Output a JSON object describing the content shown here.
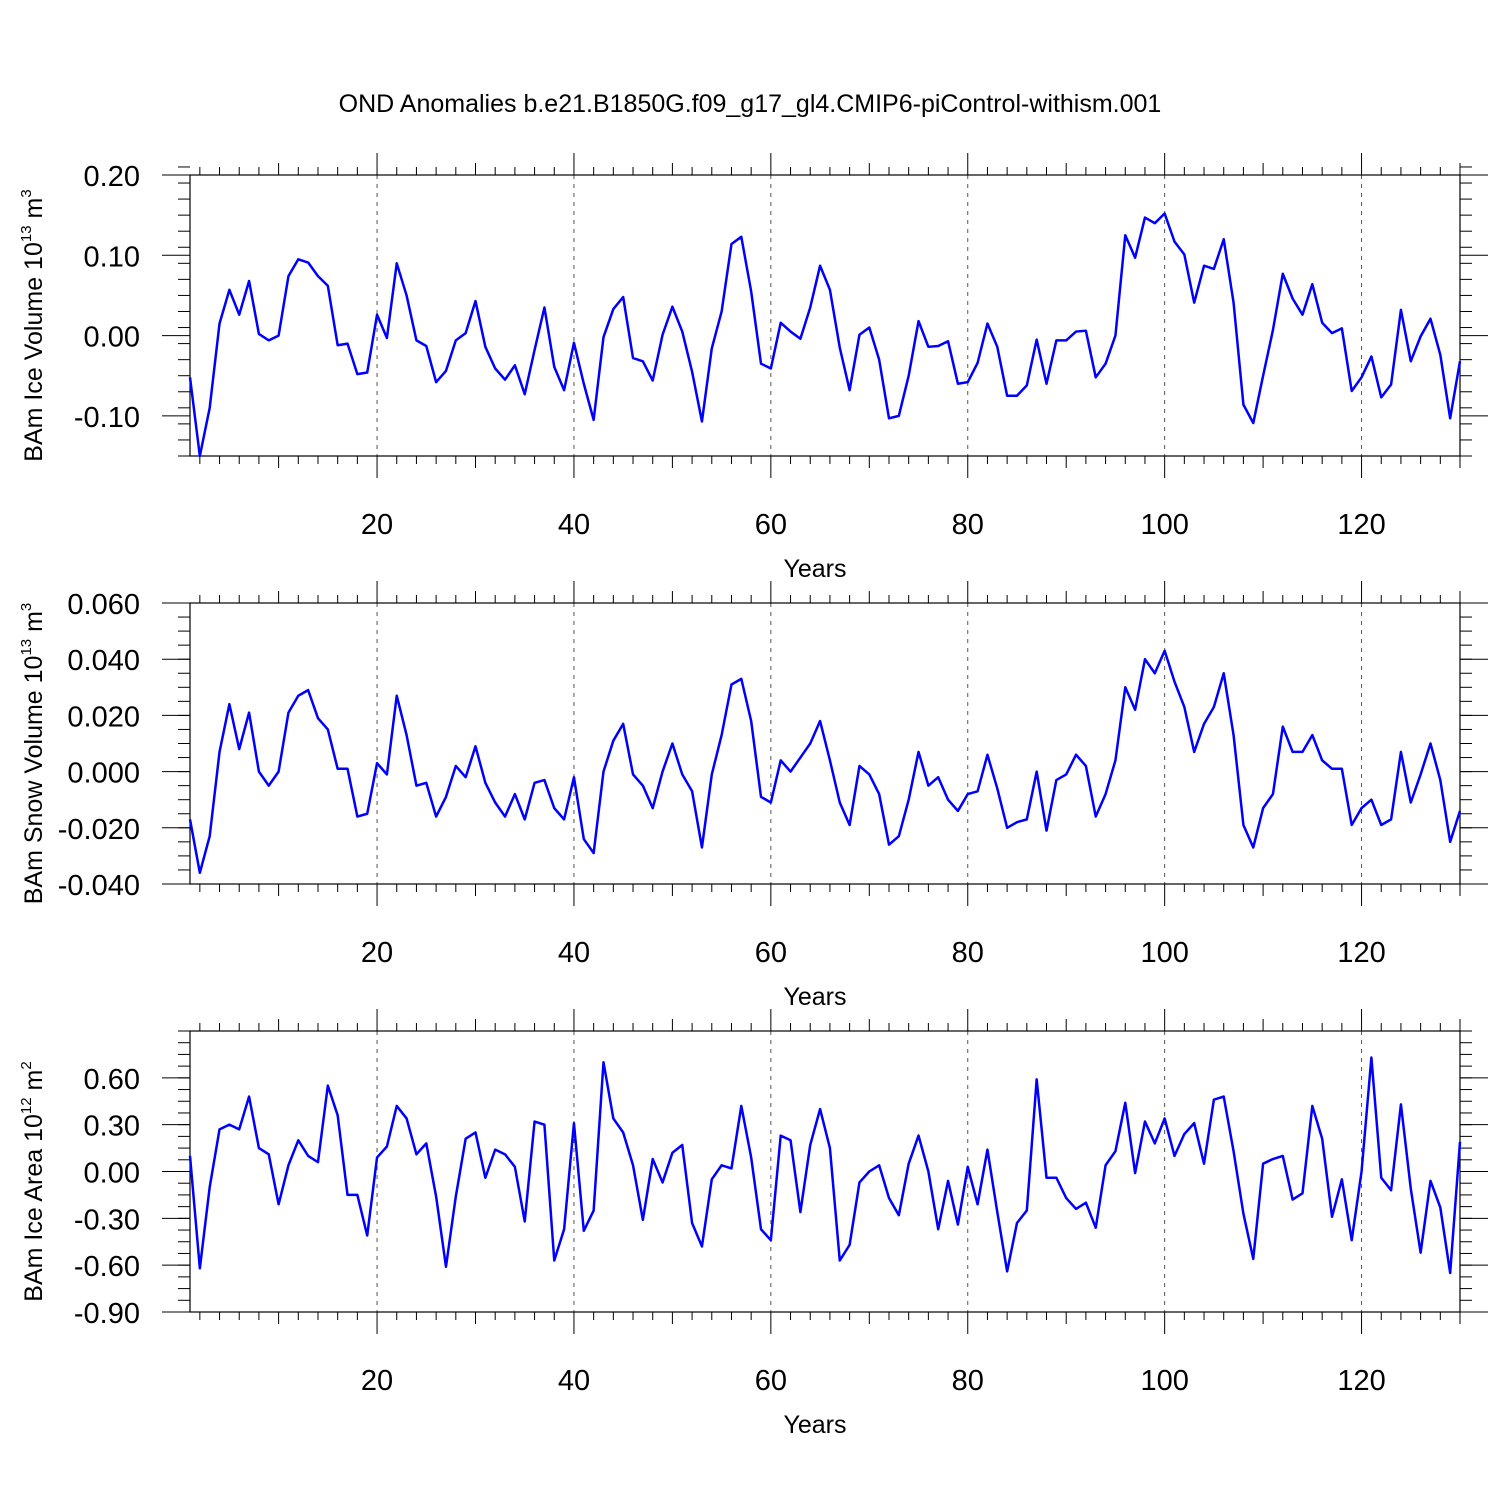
{
  "title": "OND Anomalies b.e21.B1850G.f09_g17_gl4.CMIP6-piControl-withism.001",
  "chart_data": [
    {
      "type": "line",
      "xlabel": "Years",
      "ylabel": "BAm Ice Volume 10",
      "ylabel_sup": "13",
      "ylabel_unit": "m",
      "ylabel_unit_sup": "3",
      "xlim": [
        1,
        130
      ],
      "ylim": [
        -0.15,
        0.2
      ],
      "xticks": [
        20,
        40,
        60,
        80,
        100,
        120
      ],
      "xtick_labels": [
        "20",
        "40",
        "60",
        "80",
        "100",
        "120"
      ],
      "yticks": [
        0.2,
        0.1,
        0.0,
        -0.1
      ],
      "ytick_labels": [
        "0.20",
        "0.10",
        "0.00",
        "-0.10"
      ],
      "y_minor_step": 0.02,
      "grid": "dashed vertical at major x ticks",
      "color": "#0000ff",
      "series": [
        {
          "x_start": 1,
          "values": [
            -0.052,
            -0.15,
            -0.09,
            0.015,
            0.057,
            0.026,
            0.068,
            0.002,
            -0.006,
            0.0,
            0.074,
            0.095,
            0.091,
            0.074,
            0.062,
            -0.012,
            -0.01,
            -0.048,
            -0.046,
            0.026,
            -0.003,
            0.09,
            0.05,
            -0.006,
            -0.013,
            -0.058,
            -0.044,
            -0.006,
            0.003,
            0.043,
            -0.014,
            -0.041,
            -0.055,
            -0.037,
            -0.073,
            -0.018,
            0.035,
            -0.039,
            -0.068,
            -0.009,
            -0.06,
            -0.105,
            -0.002,
            0.033,
            0.048,
            -0.028,
            -0.032,
            -0.056,
            0.001,
            0.036,
            0.005,
            -0.045,
            -0.107,
            -0.016,
            0.03,
            0.114,
            0.123,
            0.055,
            -0.035,
            -0.041,
            0.016,
            0.005,
            -0.004,
            0.035,
            0.087,
            0.057,
            -0.015,
            -0.068,
            0.001,
            0.01,
            -0.03,
            -0.103,
            -0.1,
            -0.05,
            0.018,
            -0.014,
            -0.013,
            -0.007,
            -0.06,
            -0.058,
            -0.034,
            0.015,
            -0.014,
            -0.075,
            -0.075,
            -0.062,
            -0.005,
            -0.06,
            -0.006,
            -0.006,
            0.005,
            0.006,
            -0.052,
            -0.035,
            0.0,
            0.125,
            0.097,
            0.147,
            0.14,
            0.152,
            0.117,
            0.101,
            0.041,
            0.087,
            0.083,
            0.12,
            0.041,
            -0.086,
            -0.109,
            -0.05,
            0.007,
            0.077,
            0.046,
            0.026,
            0.064,
            0.016,
            0.003,
            0.009,
            -0.069,
            -0.052,
            -0.026,
            -0.077,
            -0.061,
            0.032,
            -0.032,
            -0.001,
            0.021,
            -0.024,
            -0.103,
            -0.032
          ]
        }
      ]
    },
    {
      "type": "line",
      "xlabel": "Years",
      "ylabel": "BAm Snow Volume 10",
      "ylabel_sup": "13",
      "ylabel_unit": "m",
      "ylabel_unit_sup": "3",
      "xlim": [
        1,
        130
      ],
      "ylim": [
        -0.04,
        0.06
      ],
      "xticks": [
        20,
        40,
        60,
        80,
        100,
        120
      ],
      "xtick_labels": [
        "20",
        "40",
        "60",
        "80",
        "100",
        "120"
      ],
      "yticks": [
        0.06,
        0.04,
        0.02,
        0.0,
        -0.02,
        -0.04
      ],
      "ytick_labels": [
        "0.060",
        "0.040",
        "0.020",
        "0.000",
        "-0.020",
        "-0.040"
      ],
      "y_minor_step": 0.005,
      "grid": "dashed vertical at major x ticks",
      "color": "#0000ff",
      "series": [
        {
          "x_start": 1,
          "values": [
            -0.017,
            -0.036,
            -0.023,
            0.007,
            0.024,
            0.008,
            0.021,
            0.0,
            -0.005,
            0.0,
            0.021,
            0.027,
            0.029,
            0.019,
            0.015,
            0.001,
            0.001,
            -0.016,
            -0.015,
            0.003,
            -0.001,
            0.027,
            0.013,
            -0.005,
            -0.004,
            -0.016,
            -0.009,
            0.002,
            -0.002,
            0.009,
            -0.004,
            -0.011,
            -0.016,
            -0.008,
            -0.017,
            -0.004,
            -0.003,
            -0.013,
            -0.017,
            -0.002,
            -0.024,
            -0.029,
            0.0,
            0.011,
            0.017,
            -0.001,
            -0.005,
            -0.013,
            0.0,
            0.01,
            -0.001,
            -0.007,
            -0.027,
            -0.001,
            0.013,
            0.031,
            0.033,
            0.018,
            -0.009,
            -0.011,
            0.004,
            0.0,
            0.005,
            0.01,
            0.018,
            0.004,
            -0.011,
            -0.019,
            0.002,
            -0.001,
            -0.008,
            -0.026,
            -0.023,
            -0.01,
            0.007,
            -0.005,
            -0.002,
            -0.01,
            -0.014,
            -0.008,
            -0.007,
            0.006,
            -0.006,
            -0.02,
            -0.018,
            -0.017,
            0.0,
            -0.021,
            -0.003,
            -0.001,
            0.006,
            0.002,
            -0.016,
            -0.008,
            0.004,
            0.03,
            0.022,
            0.04,
            0.035,
            0.043,
            0.032,
            0.023,
            0.007,
            0.017,
            0.023,
            0.035,
            0.013,
            -0.019,
            -0.027,
            -0.013,
            -0.008,
            0.016,
            0.007,
            0.007,
            0.013,
            0.004,
            0.001,
            0.001,
            -0.019,
            -0.013,
            -0.01,
            -0.019,
            -0.017,
            0.007,
            -0.011,
            -0.001,
            0.01,
            -0.003,
            -0.025,
            -0.014
          ]
        }
      ]
    },
    {
      "type": "line",
      "xlabel": "Years",
      "ylabel": "BAm Ice Area 10",
      "ylabel_sup": "12",
      "ylabel_unit": "m",
      "ylabel_unit_sup": "2",
      "xlim": [
        1,
        130
      ],
      "ylim": [
        -0.9,
        0.9
      ],
      "xticks": [
        20,
        40,
        60,
        80,
        100,
        120
      ],
      "xtick_labels": [
        "20",
        "40",
        "60",
        "80",
        "100",
        "120"
      ],
      "yticks": [
        0.6,
        0.3,
        0.0,
        -0.3,
        -0.6,
        -0.9
      ],
      "ytick_labels": [
        "0.60",
        "0.30",
        "0.00",
        "-0.30",
        "-0.60",
        "-0.90"
      ],
      "y_minor_step": 0.075,
      "grid": "dashed vertical at major x ticks",
      "color": "#0000ff",
      "series": [
        {
          "x_start": 1,
          "values": [
            0.1,
            -0.62,
            -0.1,
            0.27,
            0.3,
            0.27,
            0.48,
            0.15,
            0.11,
            -0.21,
            0.04,
            0.2,
            0.1,
            0.06,
            0.55,
            0.36,
            -0.15,
            -0.15,
            -0.41,
            0.09,
            0.16,
            0.42,
            0.34,
            0.11,
            0.18,
            -0.16,
            -0.61,
            -0.16,
            0.21,
            0.25,
            -0.04,
            0.14,
            0.11,
            0.03,
            -0.32,
            0.32,
            0.3,
            -0.57,
            -0.37,
            0.31,
            -0.38,
            -0.25,
            0.7,
            0.34,
            0.25,
            0.04,
            -0.31,
            0.08,
            -0.07,
            0.12,
            0.17,
            -0.33,
            -0.48,
            -0.05,
            0.04,
            0.02,
            0.42,
            0.09,
            -0.37,
            -0.44,
            0.23,
            0.2,
            -0.26,
            0.17,
            0.4,
            0.15,
            -0.57,
            -0.47,
            -0.07,
            0.0,
            0.04,
            -0.17,
            -0.28,
            0.05,
            0.23,
            0.0,
            -0.37,
            -0.06,
            -0.34,
            0.03,
            -0.21,
            0.14,
            -0.26,
            -0.64,
            -0.33,
            -0.25,
            0.59,
            -0.04,
            -0.04,
            -0.17,
            -0.24,
            -0.2,
            -0.36,
            0.04,
            0.13,
            0.44,
            -0.01,
            0.32,
            0.18,
            0.34,
            0.1,
            0.24,
            0.31,
            0.05,
            0.46,
            0.48,
            0.13,
            -0.27,
            -0.56,
            0.05,
            0.08,
            0.1,
            -0.18,
            -0.14,
            0.42,
            0.21,
            -0.29,
            -0.05,
            -0.44,
            0.0,
            0.73,
            -0.04,
            -0.12,
            0.43,
            -0.11,
            -0.52,
            -0.06,
            -0.23,
            -0.65,
            0.19
          ]
        }
      ]
    }
  ]
}
